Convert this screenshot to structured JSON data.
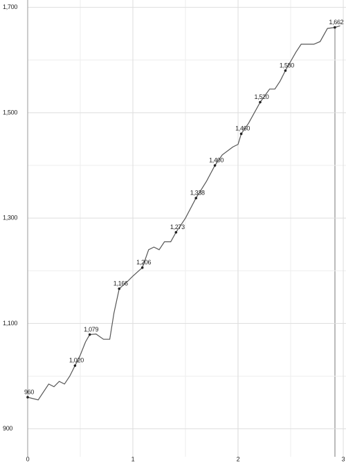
{
  "chart_data": {
    "type": "line",
    "x": [
      0,
      0.1,
      0.2,
      0.25,
      0.3,
      0.35,
      0.4,
      0.45,
      0.5,
      0.55,
      0.59,
      0.65,
      0.72,
      0.78,
      0.82,
      0.87,
      0.95,
      1.0,
      1.09,
      1.15,
      1.2,
      1.25,
      1.3,
      1.36,
      1.41,
      1.5,
      1.6,
      1.7,
      1.78,
      1.85,
      1.95,
      2.0,
      2.03,
      2.1,
      2.21,
      2.3,
      2.35,
      2.4,
      2.45,
      2.55,
      2.6,
      2.72,
      2.78,
      2.85,
      2.92,
      2.97
    ],
    "values": [
      960,
      955,
      985,
      980,
      990,
      985,
      1000,
      1020,
      1040,
      1065,
      1079,
      1080,
      1070,
      1070,
      1120,
      1166,
      1180,
      1190,
      1206,
      1240,
      1245,
      1240,
      1255,
      1255,
      1273,
      1300,
      1338,
      1370,
      1400,
      1420,
      1435,
      1440,
      1460,
      1480,
      1520,
      1545,
      1545,
      1560,
      1580,
      1615,
      1630,
      1630,
      1635,
      1660,
      1662,
      1665
    ],
    "color": "#555555",
    "labels": {
      "x": [
        0,
        0.45,
        0.59,
        0.87,
        1.09,
        1.41,
        1.6,
        1.78,
        2.03,
        2.21,
        2.45,
        2.92
      ],
      "values": [
        960,
        1020,
        1079,
        1166,
        1206,
        1273,
        1338,
        1400,
        1460,
        1520,
        1580,
        1662
      ],
      "value_labels": [
        "960",
        "1,020",
        "1,079",
        "1,166",
        "1,206",
        "1,273",
        "1,338",
        "1,400",
        "1,460",
        "1,520",
        "1,580",
        "1,662"
      ]
    },
    "xlim": [
      0,
      3.026
    ],
    "ylim": [
      847,
      1714
    ],
    "xticks": [
      0,
      1,
      2,
      3
    ],
    "yticks": [
      900,
      {
        "value": 1100,
        "label": "1,100"
      },
      {
        "value": 1300,
        "label": "1,300"
      },
      {
        "value": 1500,
        "label": "1,500"
      },
      {
        "value": 1700,
        "label": "1,700"
      }
    ],
    "minor_xticks": [
      0.5,
      1.5,
      2.5
    ],
    "minor_yticks": [
      1000,
      1200,
      1400,
      1600
    ],
    "grid": true
  }
}
